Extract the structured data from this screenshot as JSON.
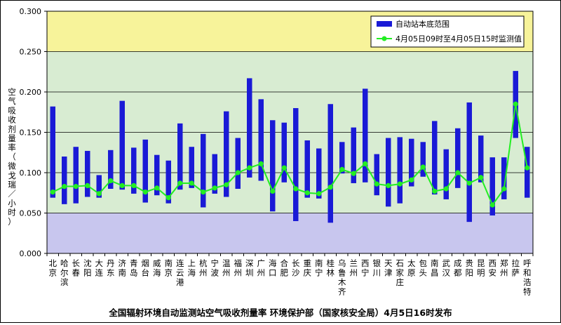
{
  "chart_data": {
    "type": "bar",
    "title": "全国辐射环境自动监测站空气吸收剂量率   环境保护部（国家核安全局）4月5日16时发布",
    "ylabel": "空气吸收剂量率（微戈瑞／小时）",
    "xlabel": "",
    "ylim": [
      0,
      0.3
    ],
    "yticks": [
      "0.000",
      "0.050",
      "0.100",
      "0.150",
      "0.200",
      "0.250",
      "0.300"
    ],
    "grid": true,
    "legend_position": "top-right",
    "background_bands": [
      {
        "from": 0.25,
        "to": 0.3,
        "color": "#f7f39a"
      },
      {
        "from": 0.05,
        "to": 0.25,
        "color": "#d8ecd2"
      },
      {
        "from": 0.0,
        "to": 0.05,
        "color": "#c8c6ee"
      }
    ],
    "categories": [
      "北京",
      "哈尔滨",
      "长春",
      "沈阳",
      "大连",
      "丹东",
      "济南",
      "青岛",
      "烟台",
      "威海",
      "南京",
      "连云港",
      "上海",
      "杭州",
      "宁波",
      "温州",
      "福州",
      "深圳",
      "广州",
      "海口",
      "合肥",
      "长沙",
      "重庆",
      "南宁",
      "桂林",
      "乌鲁木齐",
      "兰州",
      "西宁",
      "银川",
      "天津",
      "石家庄",
      "太原",
      "包头",
      "南昌",
      "武汉",
      "成都",
      "贵阳",
      "昆明",
      "西安",
      "郑州",
      "拉萨",
      "呼和浩特"
    ],
    "series": [
      {
        "name": "自动站本底范围",
        "kind": "range-bar",
        "color": "#1a1ad6",
        "low": [
          0.069,
          0.061,
          0.062,
          0.07,
          0.069,
          0.08,
          0.079,
          0.074,
          0.063,
          0.072,
          0.062,
          0.079,
          0.081,
          0.057,
          0.074,
          0.07,
          0.08,
          0.094,
          0.09,
          0.052,
          0.088,
          0.04,
          0.069,
          0.068,
          0.038,
          0.099,
          0.087,
          0.088,
          0.072,
          0.058,
          0.062,
          0.083,
          0.095,
          0.073,
          0.067,
          0.081,
          0.039,
          0.088,
          0.047,
          0.067,
          0.143,
          0.069
        ],
        "high": [
          0.182,
          0.12,
          0.132,
          0.127,
          0.097,
          0.128,
          0.189,
          0.131,
          0.141,
          0.122,
          0.115,
          0.161,
          0.132,
          0.148,
          0.123,
          0.176,
          0.143,
          0.217,
          0.191,
          0.165,
          0.162,
          0.18,
          0.14,
          0.13,
          0.185,
          0.138,
          0.156,
          0.204,
          0.123,
          0.143,
          0.144,
          0.142,
          0.138,
          0.164,
          0.129,
          0.155,
          0.187,
          0.146,
          0.119,
          0.119,
          0.226,
          0.132
        ]
      },
      {
        "name": "4月05日09时至4月05日15时监测值",
        "kind": "line",
        "color": "#22ee22",
        "values": [
          0.076,
          0.083,
          0.083,
          0.084,
          0.074,
          0.09,
          0.084,
          0.084,
          0.076,
          0.081,
          0.069,
          0.087,
          0.087,
          0.076,
          0.081,
          0.085,
          0.1,
          0.106,
          0.111,
          0.077,
          0.106,
          0.08,
          0.075,
          0.074,
          0.082,
          0.104,
          0.099,
          0.111,
          0.086,
          0.084,
          0.086,
          0.091,
          0.107,
          0.077,
          0.08,
          0.1,
          0.087,
          0.094,
          0.06,
          0.08,
          0.185,
          0.106
        ]
      }
    ]
  }
}
